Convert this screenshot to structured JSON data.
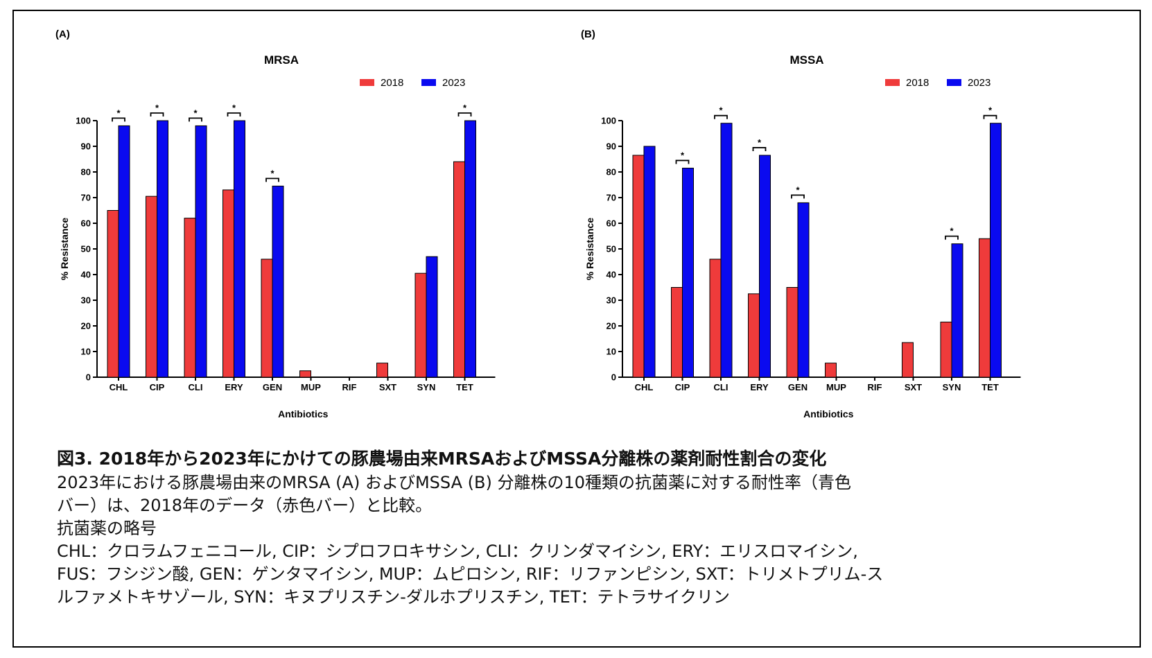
{
  "panel_a_label": "(A)",
  "panel_b_label": "(B)",
  "chart_data": [
    {
      "type": "bar",
      "title": "MRSA",
      "xlabel": "Antibiotics",
      "ylabel": "% Resistance",
      "ylim": [
        0,
        100
      ],
      "yticks": [
        0,
        10,
        20,
        30,
        40,
        50,
        60,
        70,
        80,
        90,
        100
      ],
      "categories": [
        "CHL",
        "CIP",
        "CLI",
        "ERY",
        "GEN",
        "MUP",
        "RIF",
        "SXT",
        "SYN",
        "TET"
      ],
      "series": [
        {
          "name": "2018",
          "color": "#ef3b3b",
          "values": [
            65,
            70.5,
            62,
            73,
            46,
            2.5,
            0,
            5.5,
            40.5,
            84
          ]
        },
        {
          "name": "2023",
          "color": "#0a0af0",
          "values": [
            98,
            100,
            98,
            100,
            74.5,
            0,
            0,
            0,
            47,
            100
          ]
        }
      ],
      "significance": [
        true,
        true,
        true,
        true,
        true,
        false,
        false,
        false,
        false,
        true
      ],
      "significance_mark": "*",
      "legend_position": "top-right",
      "grid": false
    },
    {
      "type": "bar",
      "title": "MSSA",
      "xlabel": "Antibiotics",
      "ylabel": "% Resistance",
      "ylim": [
        0,
        100
      ],
      "yticks": [
        0,
        10,
        20,
        30,
        40,
        50,
        60,
        70,
        80,
        90,
        100
      ],
      "categories": [
        "CHL",
        "CIP",
        "CLI",
        "ERY",
        "GEN",
        "MUP",
        "RIF",
        "SXT",
        "SYN",
        "TET"
      ],
      "series": [
        {
          "name": "2018",
          "color": "#ef3b3b",
          "values": [
            86.5,
            35,
            46,
            32.5,
            35,
            5.5,
            0,
            13.5,
            21.5,
            54
          ]
        },
        {
          "name": "2023",
          "color": "#0a0af0",
          "values": [
            90,
            81.5,
            99,
            86.5,
            68,
            0,
            0,
            0,
            52,
            99
          ]
        }
      ],
      "significance": [
        false,
        true,
        true,
        true,
        true,
        false,
        false,
        false,
        true,
        true
      ],
      "significance_mark": "*",
      "legend_position": "top-right",
      "grid": false
    }
  ],
  "caption": {
    "title": "図3. 2018年から2023年にかけての豚農場由来MRSAおよびMSSA分離株の薬剤耐性割合の変化",
    "lines": [
      "2023年における豚農場由来のMRSA (A) およびMSSA (B) 分離株の10種類の抗菌薬に対する耐性率（青色",
      "バー）は、2018年のデータ（赤色バー）と比較。",
      "抗菌薬の略号",
      "CHL：クロラムフェニコール, CIP：シプロフロキサシン, CLI：クリンダマイシン, ERY：エリスロマイシン,",
      "FUS：フシジン酸, GEN：ゲンタマイシン, MUP：ムピロシン, RIF：リファンピシン, SXT：トリメトプリム-ス",
      "ルファメトキサゾール, SYN：キヌプリスチン-ダルホプリスチン, TET：テトラサイクリン"
    ]
  }
}
